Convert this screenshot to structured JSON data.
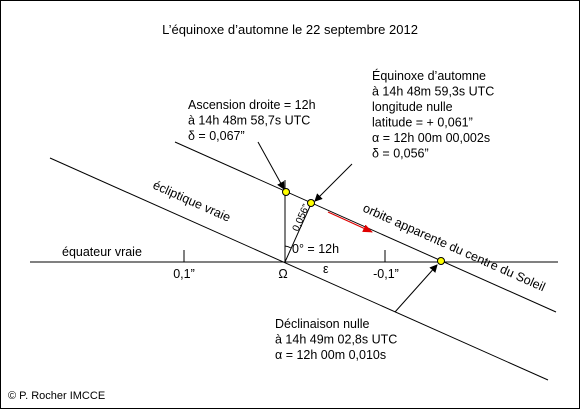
{
  "title": "L’équinoxe d’automne le 22 septembre 2012",
  "axis_labels": {
    "equator": "équateur vraie",
    "ecliptic": "écliptique vraie",
    "orbit": "orbite apparente du centre du Soleil"
  },
  "ticks": [
    "0,1”",
    "Ω",
    "-0,1”"
  ],
  "angle_labels": {
    "epsilon": "ε",
    "offset": "0,056”",
    "origin": "0° = 12h"
  },
  "annotations": [
    {
      "lines": [
        "Ascension droite = 12h",
        "à 14h 48m 58,7s UTC",
        "δ = 0,067”"
      ]
    },
    {
      "lines": [
        "Équinoxe d’automne",
        "à 14h 48m 59,3s UTC",
        "longitude nulle",
        "latitude = + 0,061”",
        "α = 12h 00m 00,002s",
        "δ  = 0,056”"
      ]
    },
    {
      "lines": [
        "Déclinaison nulle",
        "à 14h 49m 02,8s UTC",
        "α = 12h 00m 0,010s"
      ]
    }
  ],
  "credit": "© P. Rocher IMCCE"
}
